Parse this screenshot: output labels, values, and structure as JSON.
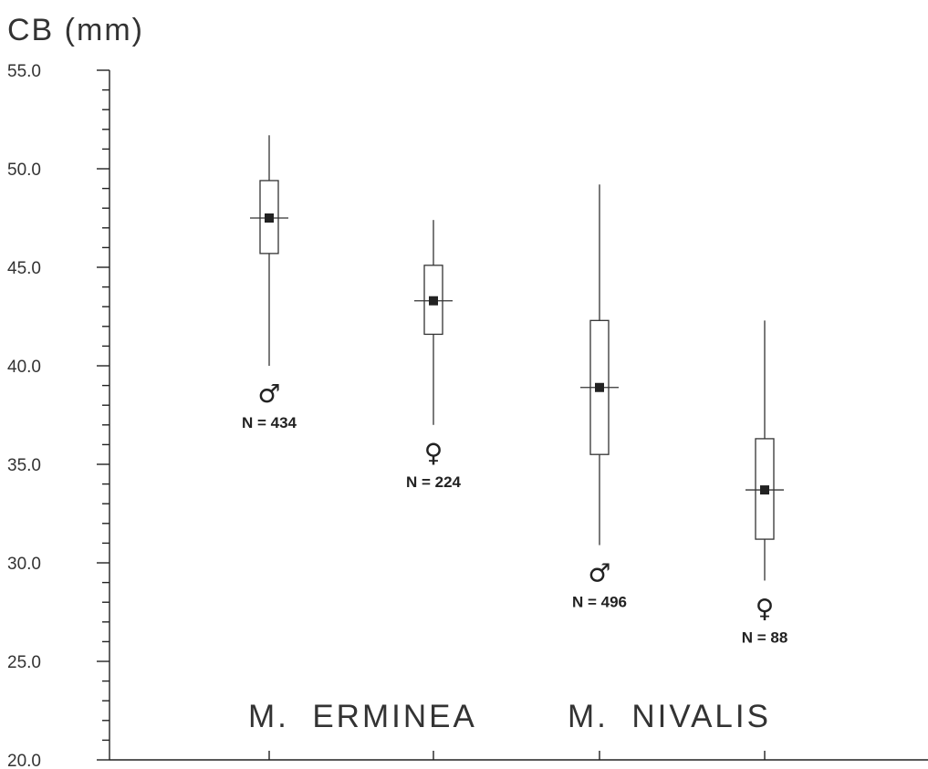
{
  "chart_data": {
    "type": "boxplot",
    "ylabel": "CB (mm)",
    "ylim": [
      20.0,
      55.0
    ],
    "yticks": [
      "20.0",
      "25.0",
      "30.0",
      "35.0",
      "40.0",
      "45.0",
      "50.0",
      "55.0"
    ],
    "minor_tick_step": 1,
    "groups": [
      {
        "species": "M. ERMINEA",
        "sex_symbol": "♂",
        "n_label": "N = 434",
        "min": 40.0,
        "q1": 45.7,
        "mean": 47.5,
        "q3": 49.4,
        "max": 51.7
      },
      {
        "species": "M. ERMINEA",
        "sex_symbol": "♀",
        "n_label": "N = 224",
        "min": 37.0,
        "q1": 41.6,
        "mean": 43.3,
        "q3": 45.1,
        "max": 47.4
      },
      {
        "species": "M. NIVALIS",
        "sex_symbol": "♂",
        "n_label": "N = 496",
        "min": 30.9,
        "q1": 35.5,
        "mean": 38.9,
        "q3": 42.3,
        "max": 49.2
      },
      {
        "species": "M. NIVALIS",
        "sex_symbol": "♀",
        "n_label": "N = 88",
        "min": 29.1,
        "q1": 31.2,
        "mean": 33.7,
        "q3": 36.3,
        "max": 42.3
      }
    ],
    "species_labels": [
      "M.  ERMINEA",
      "M.  NIVALIS"
    ]
  }
}
